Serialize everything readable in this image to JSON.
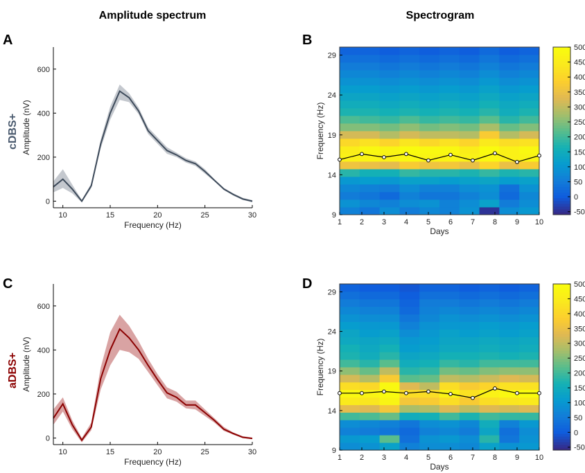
{
  "headers": {
    "left": "Amplitude spectrum",
    "right": "Spectrogram"
  },
  "panels": {
    "A": "A",
    "B": "B",
    "C": "C",
    "D": "D"
  },
  "rows": {
    "top": "cDBS+",
    "bottom": "aDBS+"
  },
  "colors": {
    "cdbs": "#3d4a5a",
    "cdbs_band": "#c4c8ce",
    "adbs": "#8b0000",
    "adbs_band": "#d9a3a3"
  },
  "chart_data": [
    {
      "id": "A",
      "type": "area",
      "xlabel": "Frequency (Hz)",
      "ylabel": "Amplitude (nV)",
      "xlim": [
        9,
        30
      ],
      "ylim": [
        -30,
        700
      ],
      "xticks": [
        10,
        15,
        20,
        25,
        30
      ],
      "yticks": [
        0,
        200,
        400,
        600
      ],
      "x": [
        9,
        10,
        11,
        12,
        13,
        14,
        15,
        16,
        17,
        18,
        19,
        20,
        21,
        22,
        23,
        24,
        25,
        26,
        27,
        28,
        29,
        30
      ],
      "mean": [
        65,
        100,
        55,
        0,
        70,
        260,
        400,
        500,
        470,
        410,
        320,
        275,
        230,
        210,
        185,
        170,
        135,
        95,
        55,
        30,
        10,
        0
      ],
      "lower": [
        40,
        60,
        35,
        -5,
        60,
        240,
        370,
        460,
        450,
        395,
        305,
        260,
        215,
        200,
        175,
        160,
        125,
        90,
        50,
        25,
        5,
        -5
      ],
      "upper": [
        90,
        145,
        75,
        5,
        80,
        280,
        430,
        530,
        490,
        425,
        335,
        290,
        245,
        220,
        195,
        180,
        145,
        100,
        60,
        35,
        15,
        5
      ]
    },
    {
      "id": "B",
      "type": "heatmap",
      "xlabel": "Days",
      "ylabel": "Frequency (Hz)",
      "xlim": [
        1,
        10
      ],
      "ylim": [
        9,
        30
      ],
      "xticks": [
        1,
        2,
        3,
        4,
        5,
        6,
        7,
        8,
        9,
        10
      ],
      "yticks": [
        9,
        14,
        19,
        24,
        29
      ],
      "clim": [
        -60,
        500
      ],
      "cbar_ticks": [
        -50,
        0,
        50,
        100,
        150,
        200,
        250,
        300,
        350,
        400,
        450,
        500
      ],
      "peak_days": [
        1,
        2,
        3,
        4,
        5,
        6,
        7,
        8,
        9,
        10
      ],
      "peak_freq": [
        15.9,
        16.6,
        16.2,
        16.6,
        15.8,
        16.5,
        15.8,
        16.7,
        15.6,
        16.4
      ],
      "freqs": [
        9,
        10,
        11,
        12,
        13,
        14,
        15,
        16,
        17,
        18,
        19,
        20,
        21,
        22,
        23,
        24,
        25,
        26,
        27,
        28,
        29,
        30
      ],
      "matrix": [
        [
          60,
          40,
          80,
          50,
          70,
          60,
          90,
          -50,
          80,
          100
        ],
        [
          90,
          70,
          60,
          80,
          90,
          60,
          80,
          120,
          50,
          80
        ],
        [
          50,
          40,
          20,
          60,
          40,
          40,
          60,
          80,
          20,
          70
        ],
        [
          70,
          60,
          50,
          80,
          60,
          60,
          80,
          90,
          30,
          90
        ],
        [
          100,
          110,
          100,
          120,
          120,
          110,
          120,
          130,
          110,
          120
        ],
        [
          180,
          160,
          160,
          190,
          180,
          180,
          170,
          190,
          170,
          180
        ],
        [
          360,
          350,
          340,
          380,
          360,
          370,
          350,
          400,
          350,
          380
        ],
        [
          470,
          480,
          470,
          490,
          480,
          480,
          470,
          490,
          470,
          480
        ],
        [
          460,
          490,
          480,
          500,
          490,
          490,
          460,
          500,
          470,
          490
        ],
        [
          410,
          430,
          400,
          440,
          410,
          430,
          400,
          450,
          420,
          430
        ],
        [
          320,
          320,
          290,
          320,
          300,
          300,
          290,
          380,
          290,
          320
        ],
        [
          250,
          250,
          240,
          260,
          240,
          250,
          240,
          280,
          230,
          250
        ],
        [
          210,
          200,
          190,
          210,
          190,
          200,
          190,
          220,
          180,
          200
        ],
        [
          170,
          170,
          160,
          170,
          160,
          170,
          160,
          180,
          150,
          170
        ],
        [
          150,
          150,
          140,
          150,
          140,
          150,
          140,
          160,
          140,
          150
        ],
        [
          130,
          130,
          120,
          130,
          120,
          130,
          120,
          140,
          120,
          130
        ],
        [
          110,
          110,
          100,
          110,
          100,
          110,
          100,
          120,
          100,
          110
        ],
        [
          90,
          90,
          80,
          90,
          80,
          90,
          80,
          100,
          80,
          90
        ],
        [
          70,
          70,
          60,
          70,
          60,
          70,
          60,
          80,
          60,
          70
        ],
        [
          50,
          50,
          40,
          50,
          40,
          50,
          40,
          60,
          40,
          50
        ],
        [
          30,
          30,
          20,
          30,
          20,
          30,
          20,
          40,
          20,
          30
        ],
        [
          10,
          10,
          0,
          10,
          0,
          10,
          0,
          20,
          0,
          10
        ]
      ]
    },
    {
      "id": "C",
      "type": "area",
      "xlabel": "Frequency (Hz)",
      "ylabel": "Amplitude (nV)",
      "xlim": [
        9,
        30
      ],
      "ylim": [
        -30,
        700
      ],
      "xticks": [
        10,
        15,
        20,
        25,
        30
      ],
      "yticks": [
        0,
        200,
        400,
        600
      ],
      "x": [
        9,
        10,
        11,
        12,
        13,
        14,
        15,
        16,
        17,
        18,
        19,
        20,
        21,
        22,
        23,
        24,
        25,
        26,
        27,
        28,
        29,
        30
      ],
      "mean": [
        90,
        155,
        60,
        -10,
        50,
        270,
        400,
        495,
        455,
        400,
        330,
        265,
        205,
        185,
        150,
        150,
        115,
        80,
        40,
        20,
        3,
        -2
      ],
      "lower": [
        60,
        120,
        40,
        -20,
        35,
        220,
        330,
        400,
        390,
        360,
        300,
        240,
        180,
        165,
        135,
        130,
        100,
        70,
        32,
        15,
        0,
        -5
      ],
      "upper": [
        130,
        185,
        80,
        0,
        70,
        320,
        480,
        560,
        510,
        440,
        360,
        290,
        230,
        210,
        170,
        170,
        130,
        90,
        50,
        25,
        8,
        2
      ]
    },
    {
      "id": "D",
      "type": "heatmap",
      "xlabel": "Days",
      "ylabel": "Frequency (Hz)",
      "xlim": [
        1,
        10
      ],
      "ylim": [
        9,
        30
      ],
      "xticks": [
        1,
        2,
        3,
        4,
        5,
        6,
        7,
        8,
        9,
        10
      ],
      "yticks": [
        9,
        14,
        19,
        24,
        29
      ],
      "clim": [
        -60,
        500
      ],
      "cbar_ticks": [
        -50,
        0,
        50,
        100,
        150,
        200,
        250,
        300,
        350,
        400,
        450,
        500
      ],
      "peak_days": [
        1,
        2,
        3,
        4,
        5,
        6,
        7,
        8,
        9,
        10
      ],
      "peak_freq": [
        16.2,
        16.2,
        16.4,
        16.2,
        16.4,
        16.1,
        15.6,
        16.8,
        16.2,
        16.2
      ],
      "freqs": [
        9,
        10,
        11,
        12,
        13,
        14,
        15,
        16,
        17,
        18,
        19,
        20,
        21,
        22,
        23,
        24,
        25,
        26,
        27,
        28,
        29,
        30
      ],
      "matrix": [
        [
          80,
          90,
          120,
          60,
          80,
          80,
          70,
          120,
          90,
          100
        ],
        [
          100,
          110,
          220,
          30,
          90,
          100,
          80,
          180,
          40,
          90
        ],
        [
          60,
          50,
          40,
          20,
          60,
          70,
          50,
          130,
          30,
          80
        ],
        [
          80,
          70,
          60,
          40,
          80,
          90,
          70,
          150,
          60,
          100
        ],
        [
          200,
          210,
          230,
          150,
          160,
          200,
          170,
          200,
          190,
          190
        ],
        [
          340,
          330,
          370,
          280,
          290,
          330,
          300,
          330,
          320,
          330
        ],
        [
          450,
          440,
          480,
          370,
          380,
          420,
          380,
          420,
          440,
          450
        ],
        [
          490,
          480,
          500,
          420,
          420,
          480,
          430,
          470,
          490,
          500
        ],
        [
          420,
          410,
          490,
          330,
          300,
          420,
          380,
          400,
          430,
          430
        ],
        [
          320,
          290,
          380,
          220,
          230,
          300,
          290,
          310,
          330,
          320
        ],
        [
          260,
          230,
          300,
          180,
          190,
          240,
          230,
          250,
          260,
          260
        ],
        [
          200,
          180,
          220,
          150,
          160,
          190,
          180,
          200,
          200,
          200
        ],
        [
          170,
          150,
          180,
          130,
          140,
          160,
          160,
          170,
          160,
          170
        ],
        [
          160,
          140,
          160,
          110,
          120,
          140,
          140,
          150,
          140,
          150
        ],
        [
          140,
          130,
          140,
          100,
          110,
          130,
          130,
          140,
          130,
          140
        ],
        [
          130,
          110,
          120,
          80,
          100,
          120,
          110,
          120,
          110,
          120
        ],
        [
          110,
          100,
          100,
          60,
          90,
          100,
          100,
          110,
          100,
          110
        ],
        [
          90,
          80,
          80,
          40,
          70,
          90,
          80,
          90,
          80,
          90
        ],
        [
          70,
          60,
          60,
          20,
          60,
          70,
          60,
          70,
          60,
          70
        ],
        [
          50,
          40,
          40,
          10,
          50,
          50,
          40,
          50,
          40,
          50
        ],
        [
          30,
          20,
          20,
          0,
          30,
          30,
          20,
          30,
          20,
          30
        ],
        [
          10,
          0,
          0,
          -10,
          10,
          10,
          0,
          10,
          0,
          10
        ]
      ]
    }
  ]
}
